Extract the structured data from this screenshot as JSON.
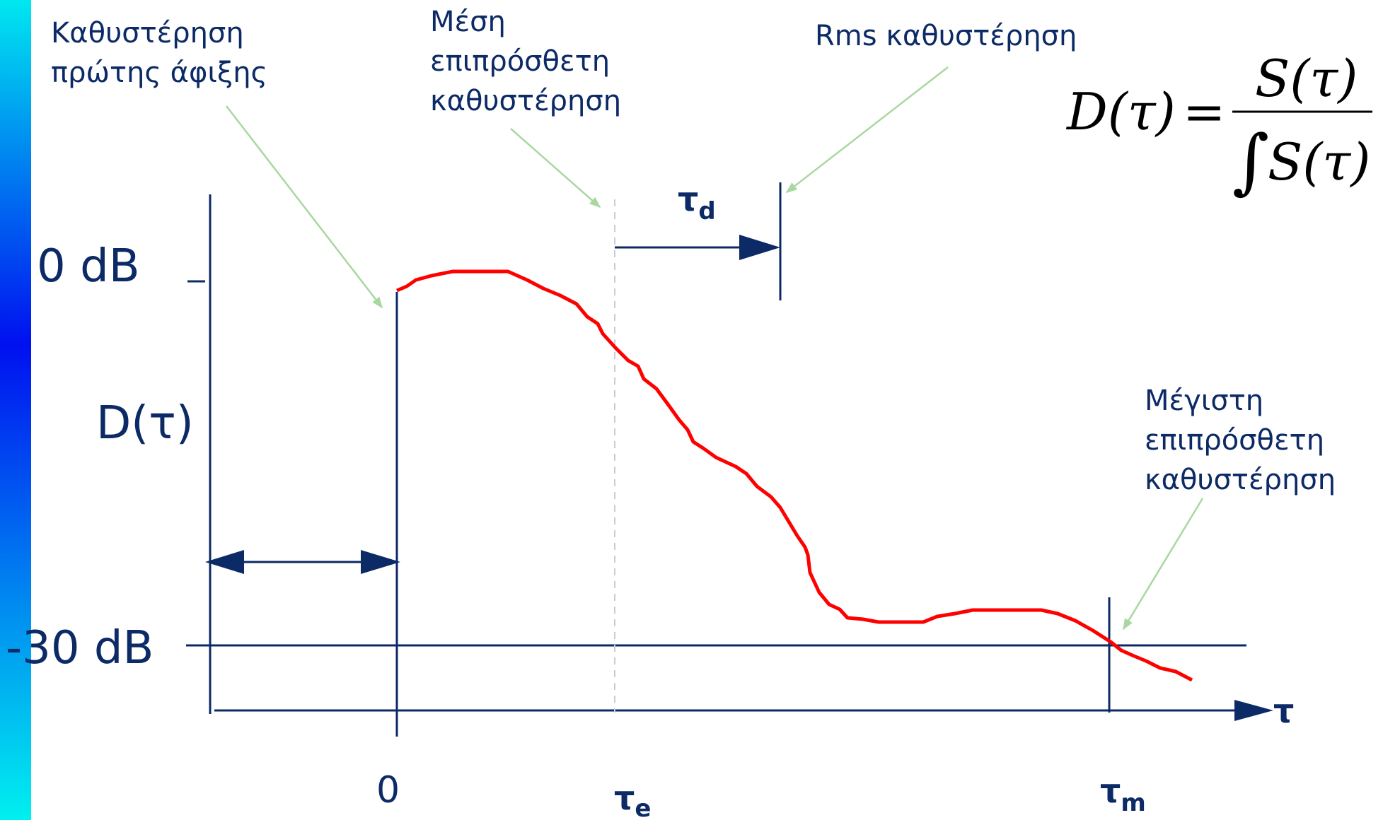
{
  "colors": {
    "axis": "#0c2a66",
    "curve": "#ff0000",
    "pointer": "#a8d8a0",
    "dashed": "#c8ccd8",
    "sidebar_top": "#00e8f0",
    "sidebar_mid": "#0010f0",
    "sidebar_bottom": "#00f0f0"
  },
  "labels": {
    "first_arrival": [
      "Καθυστέρηση",
      "πρώτης άφιξης"
    ],
    "mean_excess": [
      "Μέση",
      "επιπρόσθετη",
      "καθυστέρηση"
    ],
    "rms_delay": "Rms καθυστέρηση",
    "max_excess": [
      "Μέγιστη",
      "επιπρόσθετη",
      "καθυστέρηση"
    ],
    "zero_db": "0 dB",
    "minus30_db": "-30 dB",
    "y_axis": "D(τ)",
    "x_axis_symbol": "τ",
    "origin": "0",
    "tau_d": {
      "main": "τ",
      "sub": "d"
    },
    "tau_e": {
      "main": "τ",
      "sub": "e"
    },
    "tau_m": {
      "main": "τ",
      "sub": "m"
    }
  },
  "formula": {
    "lhs": "D(τ)",
    "equals": "=",
    "numerator": "S(τ)",
    "integral": "∫",
    "denominator": "S(τ)"
  }
}
